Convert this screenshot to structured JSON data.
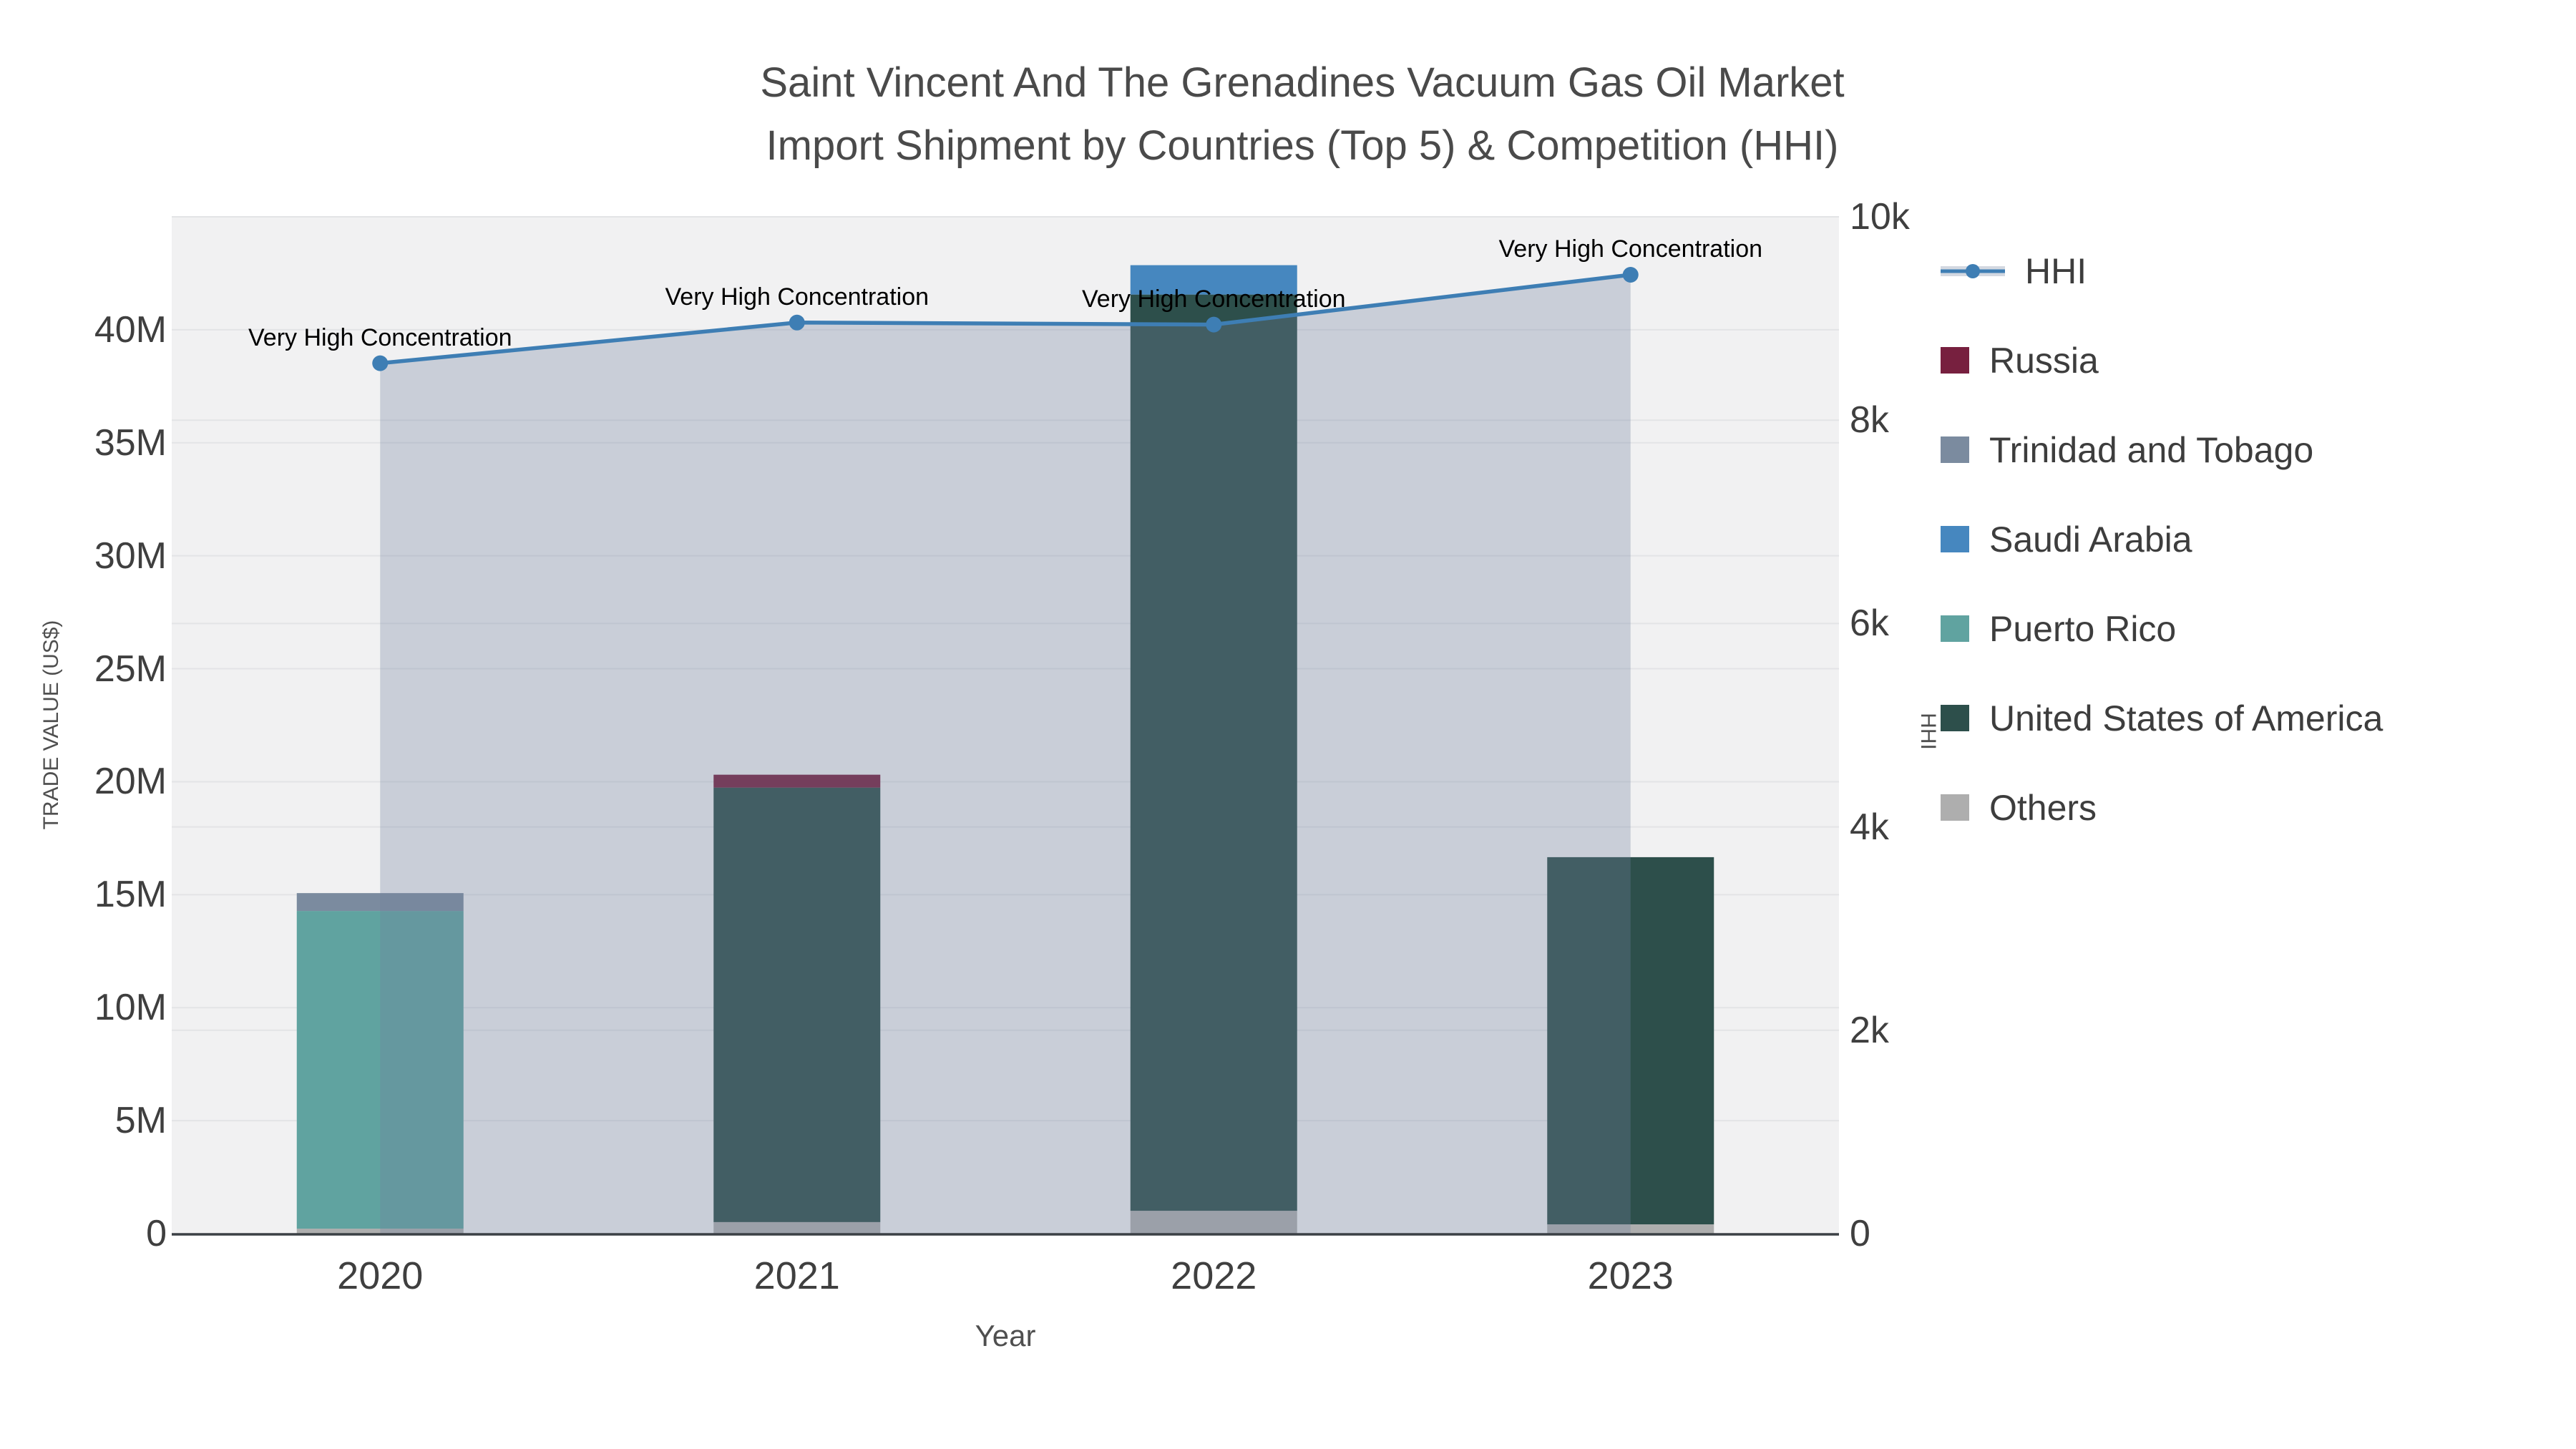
{
  "title": {
    "line1": "Saint Vincent And The Grenadines Vacuum Gas Oil Market",
    "line2": "Import Shipment by Countries (Top 5) & Competition (HHI)"
  },
  "axes": {
    "x_title": "Year",
    "y_left_title": "TRADE VALUE (US$)",
    "y_right_title": "HHI"
  },
  "chart_data": {
    "type": "bar+line",
    "categories": [
      "2020",
      "2021",
      "2022",
      "2023"
    ],
    "bar_unit": "millions USD",
    "bar_series": [
      {
        "name": "Others",
        "color": "#aeaeae",
        "values": [
          0.22,
          0.51,
          1.01,
          0.41
        ]
      },
      {
        "name": "United States of America",
        "color": "#2d4f4b",
        "values": [
          0,
          19.23,
          40.55,
          16.25
        ]
      },
      {
        "name": "Puerto Rico",
        "color": "#60a3a0",
        "values": [
          14.06,
          0,
          0,
          0
        ]
      },
      {
        "name": "Saudi Arabia",
        "color": "#4687bf",
        "values": [
          0,
          0,
          1.3,
          0
        ]
      },
      {
        "name": "Trinidad and Tobago",
        "color": "#7b8b9f",
        "values": [
          0.79,
          0,
          0,
          0
        ]
      },
      {
        "name": "Russia",
        "color": "#77203f",
        "values": [
          0,
          0.57,
          0,
          0
        ]
      }
    ],
    "bar_totals": [
      15.07,
      20.31,
      42.86,
      16.66
    ],
    "line_series": {
      "name": "HHI",
      "color": "#3e7eb4",
      "fill": "rgba(113,129,158,0.31)",
      "values": [
        8560,
        8960,
        8940,
        9430
      ]
    },
    "annotations": [
      "Very High Concentration",
      "Very High Concentration",
      "Very High Concentration",
      "Very High Concentration"
    ],
    "ylim_left": [
      0,
      45
    ],
    "ylim_right": [
      0,
      10000
    ],
    "y_left_ticks": [
      {
        "v": 0,
        "label": "0"
      },
      {
        "v": 5,
        "label": "5M"
      },
      {
        "v": 10,
        "label": "10M"
      },
      {
        "v": 15,
        "label": "15M"
      },
      {
        "v": 20,
        "label": "20M"
      },
      {
        "v": 25,
        "label": "25M"
      },
      {
        "v": 30,
        "label": "30M"
      },
      {
        "v": 35,
        "label": "35M"
      },
      {
        "v": 40,
        "label": "40M"
      }
    ],
    "y_right_ticks": [
      {
        "v": 0,
        "label": "0"
      },
      {
        "v": 2000,
        "label": "2k"
      },
      {
        "v": 4000,
        "label": "4k"
      },
      {
        "v": 6000,
        "label": "6k"
      },
      {
        "v": 8000,
        "label": "8k"
      },
      {
        "v": 10000,
        "label": "10k"
      }
    ],
    "grid": true,
    "legend_position": "right",
    "legend": [
      {
        "label": "HHI",
        "type": "line",
        "color": "#3e7eb4"
      },
      {
        "label": "Russia",
        "type": "square",
        "color": "#77203f"
      },
      {
        "label": "Trinidad and Tobago",
        "type": "square",
        "color": "#7b8b9f"
      },
      {
        "label": "Saudi Arabia",
        "type": "square",
        "color": "#4687bf"
      },
      {
        "label": "Puerto Rico",
        "type": "square",
        "color": "#60a3a0"
      },
      {
        "label": "United States of America",
        "type": "square",
        "color": "#2d4f4b"
      },
      {
        "label": "Others",
        "type": "square",
        "color": "#aeaeae"
      }
    ],
    "style": {
      "plot_bg": "#f1f1f2",
      "gridline": "#e3e4e6",
      "axis_line": "#3b4045"
    }
  }
}
